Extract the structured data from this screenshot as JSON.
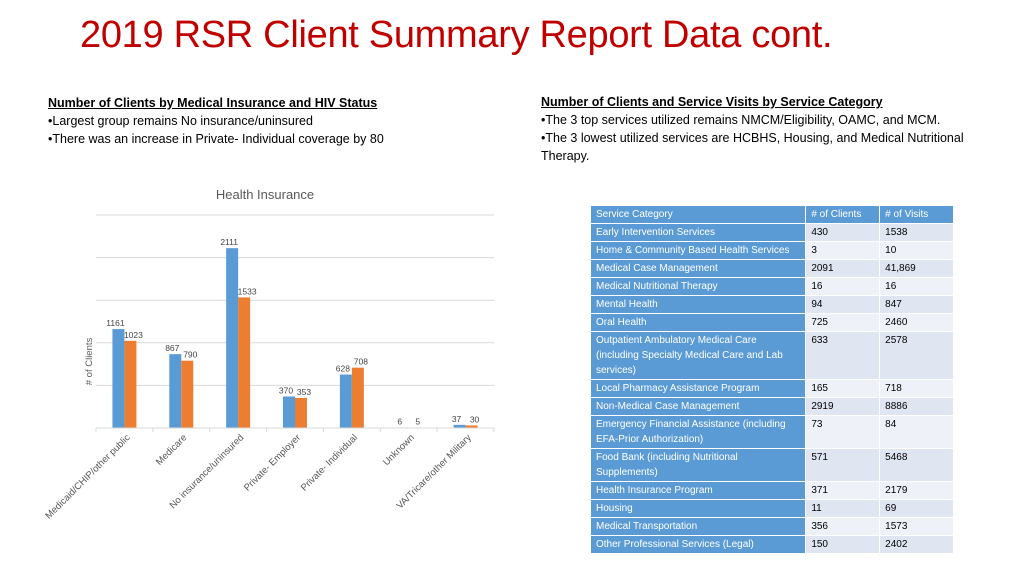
{
  "title": "2019 RSR Client Summary Report Data cont.",
  "left_notes": {
    "heading": "Number of Clients by Medical Insurance and HIV Status",
    "bullets": [
      "•Largest group remains No insurance/uninsured",
      "•There was an increase in Private- Individual coverage by 80"
    ]
  },
  "right_notes": {
    "heading": "Number of Clients and Service Visits by Service Category",
    "bullets": [
      "•The 3 top services utilized remains NMCM/Eligibility, OAMC, and MCM.",
      "•The 3 lowest utilized services are HCBHS, Housing, and Medical Nutritional Therapy."
    ]
  },
  "chart_data": {
    "type": "bar",
    "title": "Health Insurance",
    "ylabel": "# of Clients",
    "xlabel": "",
    "ylim": [
      0,
      2500
    ],
    "grid": true,
    "categories": [
      "Medicaid/CHIP/other public",
      "Medicare",
      "No insurance/uninsured",
      "Private- Employer",
      "Private- Individual",
      "Unknown",
      "VA/Tricare/other Military"
    ],
    "series": [
      {
        "values": [
          1161,
          867,
          2111,
          370,
          628,
          6,
          37
        ],
        "color": "#5b9bd5"
      },
      {
        "values": [
          1023,
          790,
          1533,
          353,
          708,
          5,
          30
        ],
        "color": "#ed7d31"
      }
    ]
  },
  "table": {
    "headers": [
      "Service Category",
      "# of Clients",
      "# of Visits"
    ],
    "rows": [
      [
        "Early Intervention Services",
        "430",
        "1538"
      ],
      [
        "Home & Community Based Health Services",
        "3",
        "10"
      ],
      [
        "Medical Case Management",
        "2091",
        "41,869"
      ],
      [
        "Medical Nutritional Therapy",
        "16",
        "16"
      ],
      [
        "Mental Health",
        "94",
        "847"
      ],
      [
        "Oral Health",
        "725",
        "2460"
      ],
      [
        "Outpatient Ambulatory Medical Care (including Specialty Medical Care and Lab services)",
        "633",
        "2578"
      ],
      [
        "Local Pharmacy Assistance Program",
        "165",
        "718"
      ],
      [
        "Non-Medical Case Management",
        "2919",
        "8886"
      ],
      [
        "Emergency Financial Assistance (including EFA-Prior Authorization)",
        "73",
        "84"
      ],
      [
        "Food Bank (including Nutritional Supplements)",
        "571",
        "5468"
      ],
      [
        "Health Insurance Program",
        "371",
        "2179"
      ],
      [
        "Housing",
        "11",
        "69"
      ],
      [
        "Medical Transportation",
        "356",
        "1573"
      ],
      [
        "Other Professional Services (Legal)",
        "150",
        "2402"
      ]
    ]
  }
}
